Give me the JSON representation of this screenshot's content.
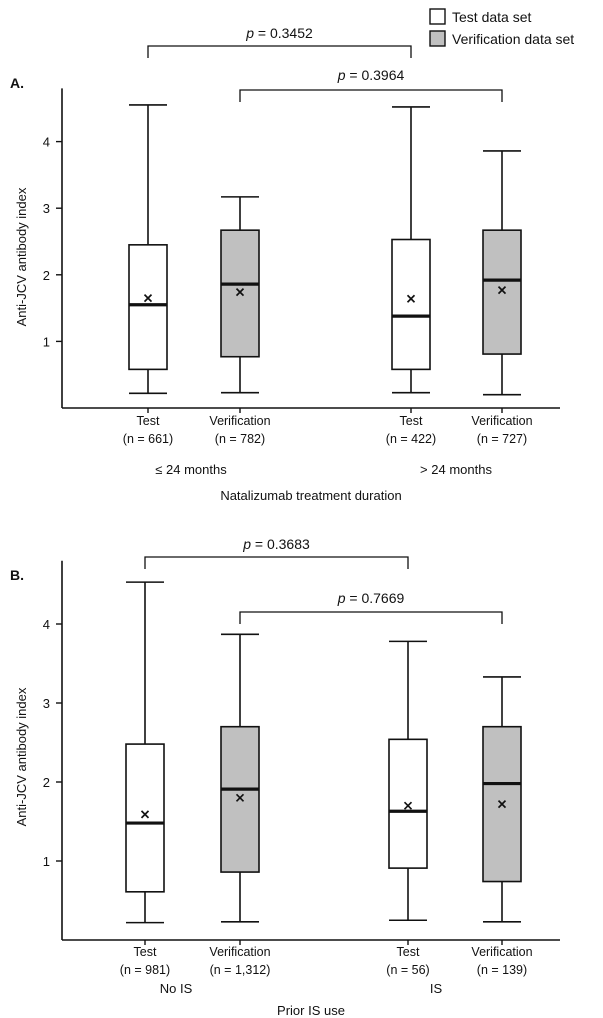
{
  "legend": {
    "items": [
      {
        "label": "Test data set",
        "color": "#ffffff"
      },
      {
        "label": "Verification data set",
        "color": "#c0c0c0"
      }
    ]
  },
  "chart_data": [
    {
      "type": "boxplot",
      "panel_label": "A.",
      "ylabel": "Anti-JCV antibody index",
      "xlabel": "Natalizumab treatment duration",
      "ylim": [
        0,
        4.8
      ],
      "yticks": [
        1,
        2,
        3,
        4
      ],
      "groups": [
        "≤ 24 months",
        "> 24 months"
      ],
      "boxes": [
        {
          "label": "Test",
          "n_label": "(n = 661)",
          "group": 0,
          "series": "Test data set",
          "min": 0.22,
          "q1": 0.58,
          "median": 1.55,
          "q3": 2.45,
          "max": 4.55,
          "mean": 1.65
        },
        {
          "label": "Verification",
          "n_label": "(n = 782)",
          "group": 0,
          "series": "Verification data set",
          "min": 0.23,
          "q1": 0.77,
          "median": 1.86,
          "q3": 2.67,
          "max": 3.17,
          "mean": 1.74
        },
        {
          "label": "Test",
          "n_label": "(n = 422)",
          "group": 1,
          "series": "Test data set",
          "min": 0.23,
          "q1": 0.58,
          "median": 1.38,
          "q3": 2.53,
          "max": 4.52,
          "mean": 1.64
        },
        {
          "label": "Verification",
          "n_label": "(n = 727)",
          "group": 1,
          "series": "Verification data set",
          "min": 0.2,
          "q1": 0.81,
          "median": 1.92,
          "q3": 2.67,
          "max": 3.86,
          "mean": 1.77
        }
      ],
      "comparisons": [
        {
          "p_prefix": "p",
          "p_value": " = 0.3452",
          "from": 0,
          "to": 2
        },
        {
          "p_prefix": "p",
          "p_value": " = 0.3964",
          "from": 1,
          "to": 3
        }
      ]
    },
    {
      "type": "boxplot",
      "panel_label": "B.",
      "ylabel": "Anti-JCV antibody index",
      "xlabel": "Prior IS use",
      "ylim": [
        0,
        4.8
      ],
      "yticks": [
        1,
        2,
        3,
        4
      ],
      "groups": [
        "No IS",
        "IS"
      ],
      "boxes": [
        {
          "label": "Test",
          "n_label": "(n = 981)",
          "group": 0,
          "series": "Test data set",
          "min": 0.22,
          "q1": 0.61,
          "median": 1.48,
          "q3": 2.48,
          "max": 4.53,
          "mean": 1.59
        },
        {
          "label": "Verification",
          "n_label": "(n = 1,312)",
          "group": 0,
          "series": "Verification data set",
          "min": 0.23,
          "q1": 0.86,
          "median": 1.91,
          "q3": 2.7,
          "max": 3.87,
          "mean": 1.8
        },
        {
          "label": "Test",
          "n_label": "(n = 56)",
          "group": 1,
          "series": "Test data set",
          "min": 0.25,
          "q1": 0.91,
          "median": 1.63,
          "q3": 2.54,
          "max": 3.78,
          "mean": 1.7
        },
        {
          "label": "Verification",
          "n_label": "(n = 139)",
          "group": 1,
          "series": "Verification data set",
          "min": 0.23,
          "q1": 0.74,
          "median": 1.98,
          "q3": 2.7,
          "max": 3.33,
          "mean": 1.72
        }
      ],
      "comparisons": [
        {
          "p_prefix": "p",
          "p_value": " = 0.3683",
          "from": 0,
          "to": 2
        },
        {
          "p_prefix": "p",
          "p_value": " = 0.7669",
          "from": 1,
          "to": 3
        }
      ]
    }
  ]
}
